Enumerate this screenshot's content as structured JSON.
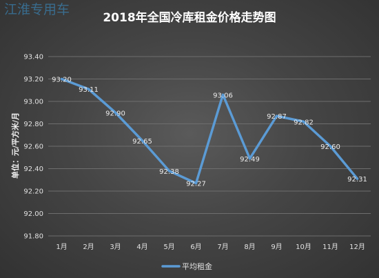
{
  "watermark": "江淮专用车",
  "chart_data": {
    "type": "line",
    "title": "2018年全国冷库租金价格走势图",
    "ylabel": "单位：元/平方米/月",
    "xlabel": "",
    "categories": [
      "1月",
      "2月",
      "3月",
      "4月",
      "5月",
      "6月",
      "7月",
      "8月",
      "9月",
      "10月",
      "11月",
      "12月"
    ],
    "series": [
      {
        "name": "平均租金",
        "values": [
          93.2,
          93.11,
          92.9,
          92.65,
          92.38,
          92.27,
          93.06,
          92.49,
          92.87,
          92.82,
          92.6,
          92.31
        ],
        "color": "#5b9bd5"
      }
    ],
    "y_ticks": [
      "91.80",
      "92.00",
      "92.20",
      "92.40",
      "92.60",
      "92.80",
      "93.00",
      "93.20",
      "93.40"
    ],
    "data_labels": [
      "93.20",
      "93.11",
      "92.90",
      "92.65",
      "92.38",
      "92.27",
      "93.06",
      "92.49",
      "92.87",
      "92.82",
      "92.60",
      "92.31"
    ],
    "ylim": [
      91.8,
      93.4
    ],
    "grid": true,
    "legend_position": "bottom"
  }
}
